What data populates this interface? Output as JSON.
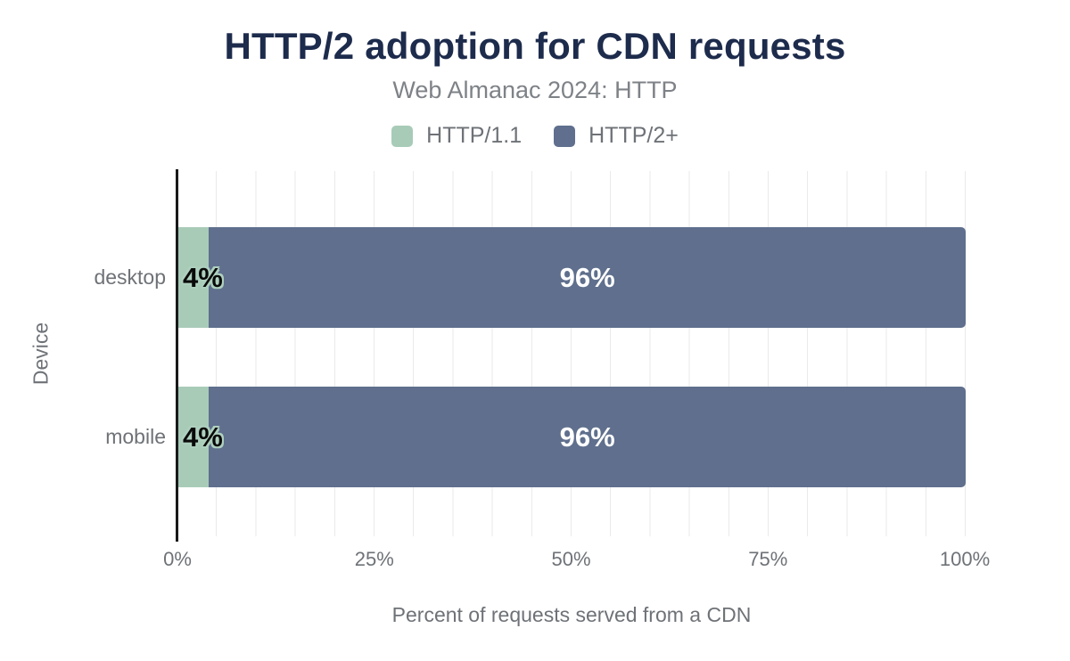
{
  "chart_data": {
    "type": "bar",
    "orientation": "horizontal",
    "stacked": true,
    "title": "HTTP/2 adoption for CDN requests",
    "subtitle": "Web Almanac 2024: HTTP",
    "xlabel": "Percent of requests served from a CDN",
    "ylabel": "Device",
    "categories": [
      "desktop",
      "mobile"
    ],
    "series": [
      {
        "name": "HTTP/1.1",
        "color": "#a8cbb8",
        "values": [
          4,
          4
        ],
        "data_labels": [
          "4%",
          "4%"
        ]
      },
      {
        "name": "HTTP/2+",
        "color": "#5f6f8d",
        "values": [
          96,
          96
        ],
        "data_labels": [
          "96%",
          "96%"
        ]
      }
    ],
    "xlim": [
      0,
      100
    ],
    "x_ticks": [
      {
        "value": 0,
        "label": "0%"
      },
      {
        "value": 25,
        "label": "25%"
      },
      {
        "value": 50,
        "label": "50%"
      },
      {
        "value": 75,
        "label": "75%"
      },
      {
        "value": 100,
        "label": "100%"
      }
    ],
    "grid": {
      "vertical_minor_step_percent": 5,
      "horizontal": false
    },
    "legend_position": "top"
  },
  "colors": {
    "background": "#ffffff",
    "title": "#1d2b4c",
    "subtitle": "#7e8287",
    "axis_text": "#6e7277",
    "axis_line": "#191919",
    "gridline": "#eaeaea",
    "bar_label_light": "#ffffff",
    "bar_label_dark": "#0a0a0a",
    "bar_label_halo": "#aed0be"
  }
}
